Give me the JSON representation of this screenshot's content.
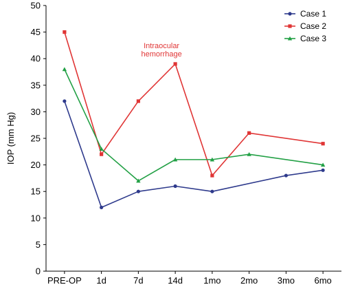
{
  "chart_data": {
    "type": "line",
    "categories": [
      "PRE-OP",
      "1d",
      "7d",
      "14d",
      "1mo",
      "2mo",
      "3mo",
      "6mo"
    ],
    "series": [
      {
        "name": "Case 1",
        "color": "#2e3a8c",
        "marker": "circle",
        "values": [
          32,
          12,
          15,
          16,
          15,
          null,
          18,
          19
        ]
      },
      {
        "name": "Case 2",
        "color": "#e03535",
        "marker": "square",
        "values": [
          45,
          22,
          32,
          39,
          18,
          26,
          null,
          24
        ]
      },
      {
        "name": "Case 3",
        "color": "#22a045",
        "marker": "triangle",
        "values": [
          38,
          23,
          17,
          21,
          21,
          22,
          null,
          20
        ]
      }
    ],
    "ylabel": "IOP (mm Hg)",
    "xlabel": "",
    "ylim": [
      0,
      50
    ],
    "yticks": [
      0,
      5,
      10,
      15,
      20,
      25,
      30,
      35,
      40,
      45,
      50
    ],
    "grid": false,
    "legend_position": "top-right",
    "annotations": [
      {
        "lines": [
          "Intraocular",
          "hemorrhage"
        ],
        "series": "Case 2",
        "category": "14d",
        "color": "#e03535"
      }
    ]
  }
}
